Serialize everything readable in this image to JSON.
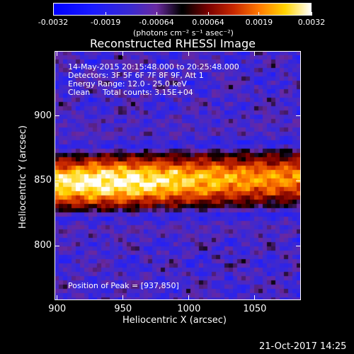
{
  "colorbar": {
    "ticks": [
      "-0.0032",
      "-0.0019",
      "-0.00064",
      "0.00064",
      "0.0019",
      "0.0032"
    ],
    "units": "(photons cm⁻² s⁻¹ asec⁻²)"
  },
  "chart_data": {
    "type": "heatmap",
    "title": "Reconstructed RHESSI Image",
    "xlabel": "Heliocentric X (arcsec)",
    "ylabel": "Heliocentric Y (arcsec)",
    "xlim": [
      898,
      1085
    ],
    "ylim": [
      758,
      950
    ],
    "xticks": [
      "900",
      "950",
      "1000",
      "1050"
    ],
    "yticks": [
      "800",
      "850",
      "900"
    ],
    "color_range": [
      -0.0032,
      0.0032
    ],
    "peak": [
      937,
      850
    ],
    "annotations": {
      "time": "14-May-2015 20:15:48.000 to 20:25:48.000",
      "detectors": "Detectors: 3F 5F 6F 7F 8F 9F, Att 1",
      "energy": "Energy Range: 12.0 - 25.0 keV",
      "clean": "Clean",
      "counts": "Total counts: 3.15E+04",
      "peak_label": "Position of Peak = [937,850]"
    }
  },
  "footer": {
    "date": "21-Oct-2017 14:25"
  }
}
